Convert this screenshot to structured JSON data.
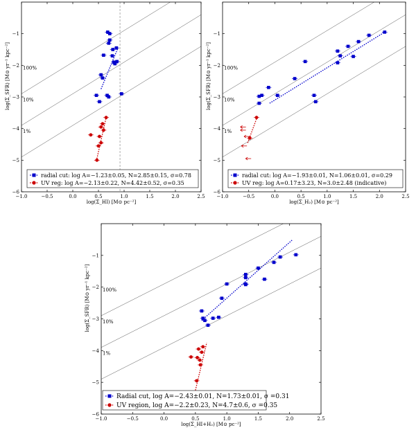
{
  "chart_data": [
    {
      "id": "top-left",
      "type": "scatter",
      "xlabel": "log(Σ_HI) [M⊙ pc⁻²]",
      "ylabel": "log(Σ_SFR) [M⊙ yr⁻¹ kpc⁻²]",
      "xlim": [
        -1.0,
        2.5
      ],
      "ylim": [
        -6,
        0
      ],
      "xticks": [
        "−1.0",
        "−0.5",
        "0.0",
        "0.5",
        "1.0",
        "1.5",
        "2.0",
        "2.5"
      ],
      "yticks": [
        "−1",
        "−2",
        "−3",
        "−4",
        "−5",
        "−6"
      ],
      "efficiency_labels": [
        "100%",
        "10%",
        "1%"
      ],
      "vline_x": 0.92,
      "series": [
        {
          "name": "radial cut",
          "legend": "radial cut: log A=−1.23±0.05, N=2.85±0.15, σ=0.78",
          "color": "#0000cc",
          "marker": "square",
          "x": [
            0.68,
            0.72,
            0.72,
            0.7,
            0.78,
            0.85,
            0.6,
            0.77,
            0.8,
            0.86,
            0.82,
            0.55,
            0.58,
            0.67,
            0.46,
            0.52,
            0.7,
            0.95
          ],
          "y": [
            -0.95,
            -1.0,
            -1.2,
            -1.3,
            -1.5,
            -1.45,
            -1.68,
            -1.7,
            -1.9,
            -1.88,
            -1.95,
            -2.3,
            -2.4,
            -2.95,
            -2.95,
            -3.15,
            -3.0,
            -2.9
          ],
          "fit": {
            "x": [
              0.55,
              0.88
            ],
            "y": [
              -2.75,
              -1.45
            ]
          }
        },
        {
          "name": "UV reg",
          "legend": "UV reg: log A=−2.13±0.22, N=4.42±0.52, σ=0.35",
          "color": "#cc0000",
          "marker": "circle",
          "x": [
            0.65,
            0.58,
            0.55,
            0.6,
            0.35,
            0.52,
            0.55,
            0.5,
            0.47
          ],
          "y": [
            -3.65,
            -3.85,
            -3.95,
            -4.05,
            -4.2,
            -4.25,
            -4.45,
            -4.55,
            -5.0
          ],
          "fit": {
            "x": [
              0.47,
              0.65
            ],
            "y": [
              -4.95,
              -3.65
            ]
          }
        }
      ]
    },
    {
      "id": "top-right",
      "type": "scatter",
      "xlabel": "log(Σ_H₂) [M⊙ pc⁻²]",
      "ylabel": "log(Σ_SFR) [M⊙ yr⁻¹ kpc⁻²]",
      "xlim": [
        -1.0,
        2.5
      ],
      "ylim": [
        -6,
        0
      ],
      "xticks": [
        "−1.0",
        "−0.5",
        "0.0",
        "0.5",
        "1.0",
        "1.5",
        "2.0",
        "2.5"
      ],
      "yticks": [
        "−1",
        "−2",
        "−3",
        "−4",
        "−5",
        "−6"
      ],
      "efficiency_labels": [
        "100%",
        "10%",
        "1%"
      ],
      "series": [
        {
          "name": "radial cut",
          "legend": "radial cut: log A=−1.93±0.01, N=1.06±0.01, σ=0.29",
          "color": "#0000cc",
          "marker": "square",
          "x": [
            2.1,
            1.8,
            1.6,
            1.4,
            1.2,
            1.5,
            1.25,
            1.2,
            0.58,
            0.38,
            0.75,
            0.78,
            -0.12,
            -0.25,
            0.05,
            -0.3,
            -0.3
          ],
          "y": [
            -0.95,
            -1.05,
            -1.25,
            -1.4,
            -1.55,
            -1.72,
            -1.7,
            -1.92,
            -1.88,
            -2.42,
            -2.95,
            -3.15,
            -2.7,
            -2.95,
            -2.95,
            -2.98,
            -3.2
          ],
          "fit": {
            "x": [
              -0.1,
              2.1
            ],
            "y": [
              -3.2,
              -0.95
            ]
          }
        },
        {
          "name": "UV reg",
          "legend": "UV reg: log A=0.17±3.23, N=3.0±2.48 (indicative)",
          "color": "#cc0000",
          "marker": "circle",
          "x": [
            -0.35,
            -0.48
          ],
          "y": [
            -3.65,
            -4.3
          ],
          "fit": {
            "x": [
              -0.52,
              -0.33
            ],
            "y": [
              -4.45,
              -3.6
            ]
          }
        }
      ]
    },
    {
      "id": "bottom",
      "type": "scatter",
      "xlabel": "log(Σ_HI+H₂) [M⊙ pc⁻²]",
      "ylabel": "log(Σ_SFR) [M⊙ yr⁻¹ kpc⁻²]",
      "xlim": [
        -1.0,
        2.5
      ],
      "ylim": [
        -6,
        0
      ],
      "xticks": [
        "−1.0",
        "−0.5",
        "0.0",
        "0.5",
        "1.0",
        "1.5",
        "2.0",
        "2.5"
      ],
      "yticks": [
        "−1",
        "−2",
        "−3",
        "−4",
        "−5",
        "−6"
      ],
      "efficiency_labels": [
        "100%",
        "10%",
        "1%"
      ],
      "series": [
        {
          "name": "Radial cut",
          "legend": "Radial cut, log A=−2.43±0.01, N=1.73±0.01, σ =0.31",
          "color": "#0000cc",
          "marker": "square",
          "x": [
            2.1,
            1.85,
            1.75,
            1.5,
            1.6,
            1.3,
            1.3,
            1.3,
            1.3,
            1.0,
            0.92,
            0.6,
            0.62,
            0.78,
            0.87,
            0.7,
            0.65
          ],
          "y": [
            -0.98,
            -1.05,
            -1.22,
            -1.4,
            -1.75,
            -1.6,
            -1.7,
            -1.9,
            -1.92,
            -1.9,
            -2.35,
            -2.75,
            -2.98,
            -2.98,
            -2.95,
            -3.2,
            -3.05
          ],
          "fit": {
            "x": [
              0.6,
              2.05
            ],
            "y": [
              -3.05,
              -0.5
            ]
          }
        },
        {
          "name": "UV region",
          "legend": "UV region, log A=−2.2±0.23, N=4.7±0.6, σ =0.35",
          "color": "#cc0000",
          "marker": "circle",
          "x": [
            0.62,
            0.6,
            0.55,
            0.43,
            0.58,
            0.53,
            0.57,
            0.52
          ],
          "y": [
            -3.88,
            -4.05,
            -3.95,
            -4.2,
            -4.45,
            -4.22,
            -4.3,
            -4.95
          ],
          "fit": {
            "x": [
              0.5,
              0.68
            ],
            "y": [
              -5.25,
              -3.75
            ]
          }
        }
      ]
    }
  ]
}
